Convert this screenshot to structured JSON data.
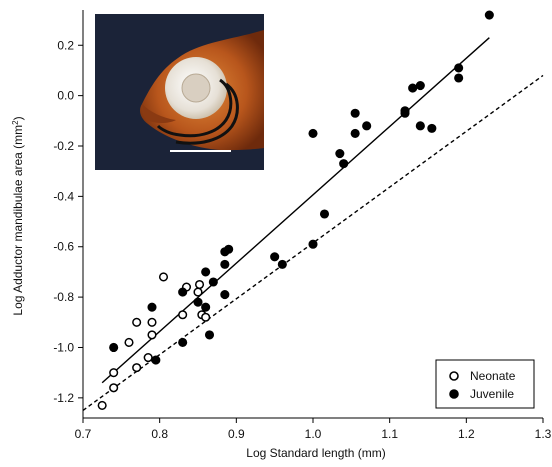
{
  "chart_data": {
    "type": "scatter",
    "title": "",
    "xlabel": "Log Standard length (mm)",
    "ylabel_main": "Log Adductor mandibulae area (mm",
    "ylabel_sup": "2",
    "ylabel_close": ")",
    "xlim": [
      0.7,
      1.3
    ],
    "ylim": [
      -1.28,
      0.34
    ],
    "xticks": [
      0.7,
      0.8,
      0.9,
      1.0,
      1.1,
      1.2,
      1.3
    ],
    "xtick_labels": [
      "0.7",
      "0.8",
      "0.9",
      "1.0",
      "1.1",
      "1.2",
      "1.3"
    ],
    "yticks": [
      0.2,
      0.0,
      -0.2,
      -0.4,
      -0.6,
      -0.8,
      -1.0,
      -1.2
    ],
    "ytick_labels": [
      "0.2",
      "0.0",
      "-0.2",
      "-0.4",
      "-0.6",
      "-0.8",
      "-1.0",
      "-1.2"
    ],
    "grid": false,
    "legend_position": "bottom-right",
    "series": [
      {
        "name": "Neonate",
        "marker": "open-circle",
        "points": [
          [
            0.725,
            -1.23
          ],
          [
            0.74,
            -1.16
          ],
          [
            0.74,
            -1.1
          ],
          [
            0.76,
            -0.98
          ],
          [
            0.77,
            -1.08
          ],
          [
            0.77,
            -0.9
          ],
          [
            0.785,
            -1.04
          ],
          [
            0.79,
            -0.95
          ],
          [
            0.79,
            -0.9
          ],
          [
            0.805,
            -0.72
          ],
          [
            0.83,
            -0.87
          ],
          [
            0.835,
            -0.76
          ],
          [
            0.85,
            -0.78
          ],
          [
            0.852,
            -0.75
          ],
          [
            0.855,
            -0.87
          ],
          [
            0.86,
            -0.88
          ]
        ]
      },
      {
        "name": "Juvenile",
        "marker": "filled-circle",
        "points": [
          [
            0.74,
            -1.0
          ],
          [
            0.79,
            -0.84
          ],
          [
            0.795,
            -1.05
          ],
          [
            0.83,
            -0.98
          ],
          [
            0.83,
            -0.78
          ],
          [
            0.85,
            -0.82
          ],
          [
            0.86,
            -0.7
          ],
          [
            0.86,
            -0.84
          ],
          [
            0.865,
            -0.95
          ],
          [
            0.87,
            -0.74
          ],
          [
            0.885,
            -0.79
          ],
          [
            0.885,
            -0.67
          ],
          [
            0.885,
            -0.62
          ],
          [
            0.89,
            -0.61
          ],
          [
            0.95,
            -0.64
          ],
          [
            0.96,
            -0.67
          ],
          [
            1.0,
            -0.59
          ],
          [
            1.0,
            -0.15
          ],
          [
            1.015,
            -0.47
          ],
          [
            1.035,
            -0.23
          ],
          [
            1.04,
            -0.27
          ],
          [
            1.055,
            -0.15
          ],
          [
            1.055,
            -0.07
          ],
          [
            1.07,
            -0.12
          ],
          [
            1.12,
            -0.07
          ],
          [
            1.12,
            -0.06
          ],
          [
            1.13,
            0.03
          ],
          [
            1.14,
            0.04
          ],
          [
            1.14,
            -0.12
          ],
          [
            1.155,
            -0.13
          ],
          [
            1.19,
            0.11
          ],
          [
            1.19,
            0.07
          ],
          [
            1.23,
            0.32
          ]
        ]
      }
    ],
    "fit_lines": [
      {
        "style": "solid",
        "x": [
          0.725,
          1.23
        ],
        "y": [
          -1.14,
          0.23
        ]
      },
      {
        "style": "dashed",
        "x": [
          0.7,
          1.3
        ],
        "y": [
          -1.25,
          0.08
        ]
      }
    ],
    "inset": {
      "description_name": "fish-head-photo",
      "background": "#1b2338",
      "scale_bar": true
    },
    "colors": {
      "marker": "#000000",
      "axis": "#000000",
      "inset_bg": "#1b2338"
    }
  }
}
